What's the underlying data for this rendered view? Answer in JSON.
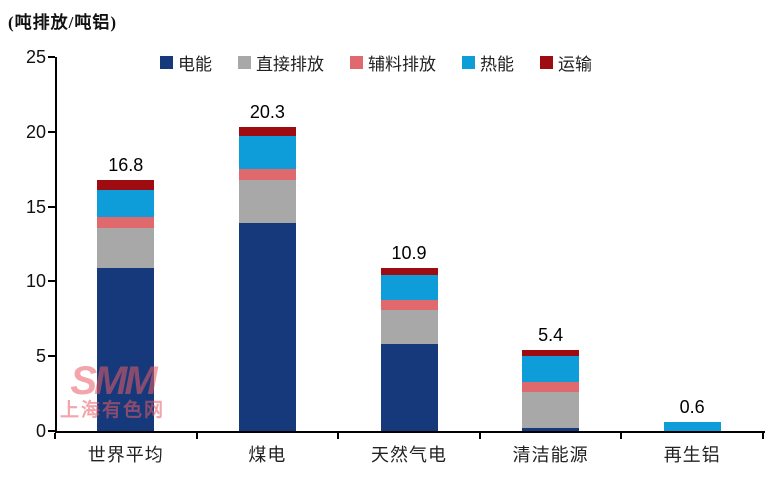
{
  "title": "(吨排放/吨铝)",
  "watermark": {
    "line1": "SMM",
    "line2": "上海有色网",
    "color": "#E85D65",
    "opacity": 0.55
  },
  "colors": {
    "axis": "#000000",
    "background": "#ffffff",
    "label_text": "#1a1a1a"
  },
  "chart_data": {
    "type": "bar",
    "stacked": true,
    "title": "(吨排放/吨铝)",
    "xlabel": "",
    "ylabel": "吨排放/吨铝",
    "categories": [
      "世界平均",
      "煤电",
      "天然气电",
      "清洁能源",
      "再生铝"
    ],
    "series": [
      {
        "name": "电能",
        "color": "#16397B",
        "values": [
          10.9,
          13.9,
          5.8,
          0.2,
          0
        ]
      },
      {
        "name": "直接排放",
        "color": "#A8A8A8",
        "values": [
          2.7,
          2.9,
          2.3,
          2.4,
          0
        ]
      },
      {
        "name": "辅料排放",
        "color": "#E0696E",
        "values": [
          0.7,
          0.7,
          0.65,
          0.7,
          0
        ]
      },
      {
        "name": "热能",
        "color": "#0F9DD9",
        "values": [
          1.8,
          2.2,
          1.65,
          1.7,
          0.6
        ]
      },
      {
        "name": "运输",
        "color": "#9E0B10",
        "values": [
          0.7,
          0.6,
          0.5,
          0.4,
          0
        ]
      }
    ],
    "totals": [
      "16.8",
      "20.3",
      "10.9",
      "5.4",
      "0.6"
    ],
    "ylim": [
      0,
      25
    ],
    "ytick_step": 5,
    "yticks": [
      "0",
      "5",
      "10",
      "15",
      "20",
      "25"
    ],
    "legend_position": "top",
    "grid": false
  }
}
